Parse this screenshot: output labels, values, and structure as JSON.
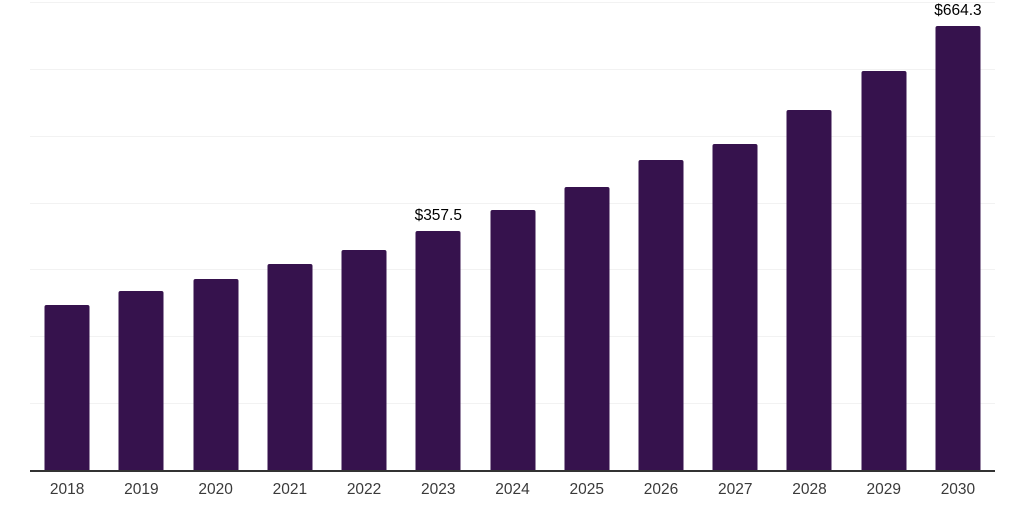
{
  "chart_data": {
    "type": "bar",
    "title": "",
    "categories": [
      "2018",
      "2019",
      "2020",
      "2021",
      "2022",
      "2023",
      "2024",
      "2025",
      "2026",
      "2027",
      "2028",
      "2029",
      "2030"
    ],
    "values": [
      247.0,
      267.5,
      286.0,
      307.5,
      329.5,
      357.5,
      389.0,
      424.0,
      463.5,
      488.0,
      538.0,
      596.5,
      664.3
    ],
    "data_labels": [
      "",
      "",
      "",
      "",
      "",
      "$357.5",
      "",
      "",
      "",
      "",
      "",
      "",
      "$664.3"
    ],
    "xlabel": "",
    "ylabel": "",
    "ylim": [
      0,
      700
    ],
    "gridline_step": 100,
    "grid": "horizontal-only",
    "legend": "none",
    "y_axis_labels_visible": false,
    "currency_prefix": "$",
    "colors": {
      "bar": "#36124D",
      "gridline": "#F2F2F2",
      "axis_line": "#333333",
      "data_label": "#000000",
      "tick_label": "#3A3A3A",
      "background": "#FFFFFF"
    }
  }
}
